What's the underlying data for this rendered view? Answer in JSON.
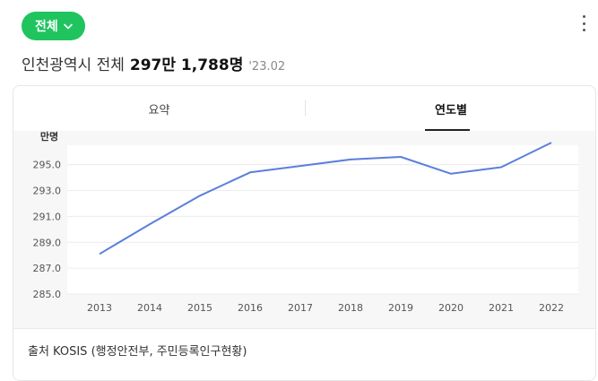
{
  "filter": {
    "label": "전체",
    "icon": "chevron-down-icon"
  },
  "more_menu": {
    "icon": "more-vertical-icon"
  },
  "headline": {
    "region": "인천광역시 전체",
    "value": "297만 1,788명",
    "date": "'23.02"
  },
  "tabs": [
    {
      "label": "요약",
      "selected": false
    },
    {
      "label": "연도별",
      "selected": true
    }
  ],
  "colors": {
    "accent": "#1fc45f",
    "line": "#5b7fdb",
    "chart_bg": "#f7f7f8"
  },
  "chart_data": {
    "type": "line",
    "unit_label": "만명",
    "x": [
      "2013",
      "2014",
      "2015",
      "2016",
      "2017",
      "2018",
      "2019",
      "2020",
      "2021",
      "2022"
    ],
    "series": [
      {
        "values": [
          288.1,
          290.4,
          292.6,
          294.4,
          294.9,
          295.4,
          295.6,
          294.3,
          294.8,
          296.7
        ]
      }
    ],
    "y_ticks": [
      "285.0",
      "287.0",
      "289.0",
      "291.0",
      "293.0",
      "295.0"
    ],
    "ylim": [
      285,
      296.5
    ],
    "grid": true,
    "legend": "none"
  },
  "source": {
    "text": "출처 KOSIS (행정안전부, 주민등록인구현황)"
  }
}
